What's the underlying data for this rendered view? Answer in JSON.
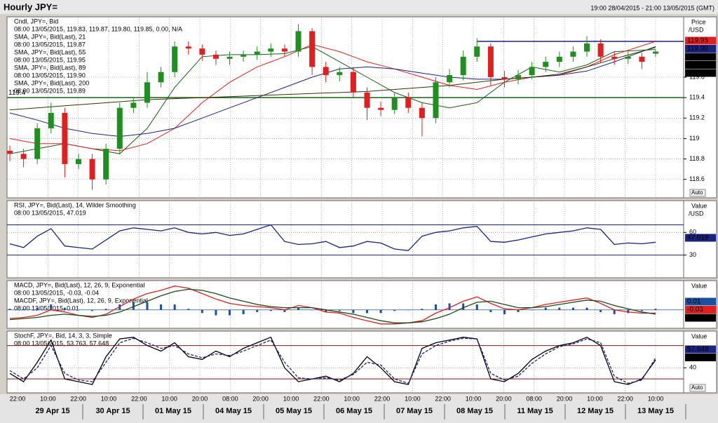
{
  "header": {
    "title": "Hourly JPY=",
    "range": "19:00 28/04/2015 - 21:00 13/05/2015 (GMT)"
  },
  "auto_label": "Auto",
  "time_axis": {
    "times": [
      "22:00",
      "10:00",
      "22:00",
      "10:00",
      "22:00",
      "10:00",
      "20:00",
      "08:00",
      "20:00",
      "10:00",
      "22:00",
      "10:00",
      "22:00",
      "10:00",
      "22:00",
      "10:00",
      "20:00",
      "08:00",
      "20:00",
      "10:00",
      "22:00",
      "10:00"
    ],
    "dates": [
      "29 Apr 15",
      "30 Apr 15",
      "01 May 15",
      "04 May 15",
      "05 May 15",
      "06 May 15",
      "07 May 15",
      "08 May 15",
      "11 May 15",
      "12 May 15",
      "13 May 15"
    ]
  },
  "chart_data": [
    {
      "type": "candlestick",
      "axis_title": "Price",
      "axis_unit": "/USD",
      "legend": [
        {
          "text": "Cndl, JPY=, Bid",
          "color": "#000000"
        },
        {
          "text": "08:00 13/05/2015, 119.83, 119.87, 119.80, 119.85, 0.00, N/A",
          "color": "#000000"
        },
        {
          "text": "SMA, JPY=, Bid(Last), 21",
          "color": "#1a5e1a"
        },
        {
          "text": "08:00 13/05/2015, 119.87",
          "color": "#1a5e1a"
        },
        {
          "text": "SMA, JPY=, Bid(Last), 55",
          "color": "#e02020"
        },
        {
          "text": "08:00 13/05/2015, 119.95",
          "color": "#e02020"
        },
        {
          "text": "SMA, JPY=, Bid(Last), 89",
          "color": "#1a237e"
        },
        {
          "text": "08:00 13/05/2015, 119.90",
          "color": "#1a237e"
        },
        {
          "text": "SMA, JPY=, Bid(Last), 200",
          "color": "#000000"
        },
        {
          "text": "08:00 13/05/2015, 119.89",
          "color": "#000000"
        }
      ],
      "ylim": [
        118.42,
        120.19
      ],
      "yticks": [
        119.6,
        119.4,
        119.2,
        119,
        118.8,
        118.6
      ],
      "up_color": "#1f8f1f",
      "down_color": "#e02020",
      "open": [
        118.88,
        118.85,
        118.8,
        119.1,
        119.25,
        118.75,
        118.8,
        118.6,
        118.9,
        119.3,
        119.35,
        119.55,
        119.65,
        119.9,
        119.88,
        119.82,
        119.78,
        119.8,
        119.82,
        119.85,
        119.88,
        119.85,
        120.05,
        119.7,
        119.62,
        119.65,
        119.45,
        119.3,
        119.28,
        119.4,
        119.3,
        119.2,
        119.55,
        119.62,
        119.8,
        119.9,
        119.6,
        119.58,
        119.62,
        119.7,
        119.75,
        119.8,
        119.85,
        119.93,
        119.8,
        119.78,
        119.8,
        119.83
      ],
      "high": [
        118.93,
        118.9,
        119.15,
        119.35,
        119.3,
        118.85,
        118.85,
        118.95,
        119.35,
        119.4,
        119.65,
        119.7,
        119.95,
        119.95,
        119.92,
        119.86,
        119.85,
        119.86,
        119.9,
        119.93,
        119.92,
        120.12,
        120.08,
        119.75,
        119.7,
        119.7,
        119.5,
        119.36,
        119.45,
        119.45,
        119.35,
        119.6,
        119.68,
        119.86,
        119.98,
        119.93,
        119.66,
        119.67,
        119.75,
        119.8,
        119.85,
        119.9,
        120.0,
        119.97,
        119.85,
        119.85,
        119.84,
        119.87
      ],
      "low": [
        118.78,
        118.72,
        118.75,
        119.05,
        118.62,
        118.7,
        118.5,
        118.55,
        118.85,
        119.25,
        119.3,
        119.5,
        119.6,
        119.82,
        119.76,
        119.72,
        119.72,
        119.75,
        119.77,
        119.8,
        119.8,
        119.8,
        119.62,
        119.55,
        119.56,
        119.4,
        119.18,
        119.22,
        119.24,
        119.25,
        119.02,
        119.15,
        119.5,
        119.57,
        119.75,
        119.52,
        119.5,
        119.53,
        119.58,
        119.65,
        119.7,
        119.75,
        119.8,
        119.74,
        119.72,
        119.73,
        119.68,
        119.8
      ],
      "close": [
        118.85,
        118.8,
        119.1,
        119.25,
        118.75,
        118.8,
        118.6,
        118.9,
        119.3,
        119.35,
        119.55,
        119.65,
        119.9,
        119.88,
        119.82,
        119.78,
        119.8,
        119.82,
        119.85,
        119.88,
        119.85,
        120.05,
        119.7,
        119.62,
        119.65,
        119.45,
        119.3,
        119.28,
        119.4,
        119.3,
        119.2,
        119.55,
        119.62,
        119.8,
        119.9,
        119.6,
        119.58,
        119.62,
        119.7,
        119.75,
        119.8,
        119.85,
        119.93,
        119.8,
        119.78,
        119.8,
        119.75,
        119.85
      ],
      "ma_x": [
        0,
        2,
        4,
        6,
        8,
        10,
        12,
        14,
        16,
        18,
        20,
        22,
        24,
        26,
        28,
        30,
        32,
        34,
        36,
        38,
        40,
        42,
        44,
        47
      ],
      "series": [
        {
          "color": "#1a5e1a",
          "values": [
            118.85,
            118.9,
            118.95,
            118.9,
            118.85,
            119.1,
            119.5,
            119.8,
            119.82,
            119.82,
            119.83,
            119.9,
            119.75,
            119.6,
            119.45,
            119.35,
            119.3,
            119.35,
            119.55,
            119.7,
            119.65,
            119.72,
            119.85,
            119.87
          ]
        },
        {
          "color": "#e02020",
          "values": [
            119.0,
            118.95,
            118.95,
            118.9,
            118.88,
            118.95,
            119.1,
            119.35,
            119.55,
            119.7,
            119.8,
            119.92,
            119.85,
            119.75,
            119.68,
            119.6,
            119.52,
            119.48,
            119.55,
            119.6,
            119.62,
            119.7,
            119.82,
            119.95
          ]
        },
        {
          "color": "#1a237e",
          "values": [
            119.25,
            119.18,
            119.1,
            119.05,
            119.02,
            119.05,
            119.1,
            119.2,
            119.3,
            119.4,
            119.5,
            119.6,
            119.68,
            119.7,
            119.68,
            119.64,
            119.6,
            119.58,
            119.58,
            119.6,
            119.62,
            119.66,
            119.75,
            119.9
          ]
        },
        {
          "color": "#333300",
          "values": [
            119.28,
            119.3,
            119.32,
            119.34,
            119.36,
            119.38,
            119.39,
            119.4,
            119.41,
            119.42,
            119.43,
            119.44,
            119.45,
            119.46,
            119.48,
            119.5,
            119.52,
            119.55,
            119.58,
            119.6,
            119.63,
            119.7,
            119.78,
            119.89
          ]
        }
      ],
      "hlines": [
        {
          "value": 119.4,
          "color": "#1a5e1a",
          "start_x": 0
        },
        {
          "value": 119.95,
          "color": "#1a237e",
          "start_x": 34
        }
      ],
      "tags": [
        {
          "value": 119.95,
          "color": "#e02020"
        },
        {
          "value": 119.9,
          "label": "119.90",
          "color": "#1a237e"
        },
        {
          "value": 119.89,
          "color": "#000000"
        },
        {
          "value": 119.87,
          "color": "#000000"
        },
        {
          "value": 119.85,
          "color": "#000000"
        }
      ]
    },
    {
      "type": "line",
      "axis_title": "Value",
      "axis_unit": "/USD",
      "legend": [
        {
          "text": "RSI, JPY=, Bid(Last), 14, Wilder Smoothing",
          "color": "#1a237e"
        },
        {
          "text": "08:00 13/05/2015, 47.019",
          "color": "#1a237e"
        }
      ],
      "ylim": [
        0,
        102
      ],
      "yticks": [
        60,
        30
      ],
      "levels": [
        70,
        30
      ],
      "level_color": "#1a237e",
      "series": [
        {
          "color": "#1a237e",
          "values": [
            45,
            40,
            55,
            65,
            42,
            40,
            38,
            50,
            62,
            66,
            64,
            62,
            66,
            60,
            58,
            60,
            56,
            58,
            64,
            70,
            48,
            44,
            45,
            48,
            40,
            42,
            48,
            46,
            38,
            36,
            55,
            60,
            62,
            66,
            68,
            48,
            47,
            50,
            54,
            58,
            60,
            62,
            66,
            64,
            44,
            46,
            45,
            47.019
          ]
        }
      ],
      "tags": [
        {
          "value": 47.019,
          "color": "#1a237e"
        }
      ]
    },
    {
      "type": "macd",
      "axis_title": "Value",
      "legend": [
        {
          "text": "MACD, JPY=, Bid(Last), 12, 26, 9, Exponential",
          "color": "#e02020"
        },
        {
          "text": "08:00 13/05/2015, -0.03, -0.04",
          "color": "#e02020"
        },
        {
          "text": "MACDF, JPY=, Bid(Last), 12, 26, 9, Exponential",
          "color": "#1c4f9c"
        },
        {
          "text": "08:00 13/05/2015, 0.01",
          "color": "#1c4f9c"
        }
      ],
      "ylim": [
        -0.17,
        0.27
      ],
      "yticks": [],
      "histogram": {
        "color": "#1c4f9c",
        "values": [
          0.01,
          0.01,
          0.02,
          0.05,
          0.02,
          0.0,
          -0.01,
          0.01,
          0.05,
          0.07,
          0.07,
          0.05,
          0.05,
          0.01,
          -0.03,
          -0.05,
          -0.05,
          -0.04,
          -0.02,
          -0.01,
          -0.02,
          0.02,
          0.0,
          -0.02,
          -0.01,
          -0.03,
          -0.03,
          -0.03,
          -0.01,
          0.0,
          0.01,
          0.05,
          0.06,
          0.06,
          0.05,
          -0.02,
          -0.04,
          -0.02,
          0.0,
          0.02,
          0.02,
          0.02,
          0.02,
          -0.02,
          -0.04,
          -0.03,
          -0.01,
          0.01
        ]
      },
      "series": [
        {
          "color": "#e02020",
          "values": [
            -0.08,
            -0.07,
            -0.05,
            0.0,
            -0.02,
            -0.05,
            -0.07,
            -0.04,
            0.03,
            0.1,
            0.15,
            0.18,
            0.22,
            0.2,
            0.15,
            0.1,
            0.06,
            0.04,
            0.03,
            0.02,
            0.0,
            0.04,
            0.02,
            -0.02,
            -0.03,
            -0.07,
            -0.1,
            -0.13,
            -0.13,
            -0.12,
            -0.1,
            -0.03,
            0.02,
            0.08,
            0.12,
            0.06,
            0.01,
            0.0,
            0.02,
            0.05,
            0.07,
            0.09,
            0.11,
            0.06,
            0.0,
            -0.02,
            -0.03,
            -0.03
          ]
        },
        {
          "color": "#1a4a1a",
          "values": [
            -0.09,
            -0.08,
            -0.07,
            -0.05,
            -0.04,
            -0.05,
            -0.06,
            -0.05,
            -0.02,
            0.03,
            0.08,
            0.13,
            0.17,
            0.19,
            0.18,
            0.15,
            0.11,
            0.08,
            0.05,
            0.03,
            0.02,
            0.02,
            0.02,
            0.0,
            -0.02,
            -0.04,
            -0.07,
            -0.1,
            -0.12,
            -0.12,
            -0.11,
            -0.08,
            -0.04,
            0.02,
            0.07,
            0.08,
            0.05,
            0.02,
            0.02,
            0.03,
            0.05,
            0.07,
            0.09,
            0.08,
            0.04,
            0.01,
            -0.02,
            -0.04
          ]
        }
      ],
      "tags": [
        {
          "value": 0.01,
          "color": "#1c4f9c"
        },
        {
          "value": -0.03,
          "color": "#e02020"
        },
        {
          "value": -0.04,
          "color": "#000000"
        }
      ]
    },
    {
      "type": "line",
      "axis_title": "Value",
      "legend": [
        {
          "text": "StochF, JPY=, Bid, 14, 3, 3, Simple",
          "color": "#000000"
        },
        {
          "text": "08:00 13/05/2015, 53.763, 57.648",
          "color": "#000000"
        }
      ],
      "ylim": [
        -5,
        106
      ],
      "yticks": [
        40
      ],
      "levels": [
        80,
        20
      ],
      "level_color": "#7a1a1a",
      "series": [
        {
          "color": "#000000",
          "values": [
            30,
            15,
            50,
            90,
            20,
            15,
            10,
            60,
            92,
            95,
            80,
            70,
            85,
            60,
            55,
            70,
            60,
            75,
            85,
            95,
            40,
            15,
            20,
            25,
            15,
            30,
            60,
            40,
            15,
            10,
            75,
            85,
            90,
            95,
            92,
            20,
            15,
            30,
            55,
            70,
            80,
            85,
            95,
            80,
            15,
            10,
            20,
            53.763
          ]
        },
        {
          "color": "#1a237e",
          "dashed": true,
          "values": [
            35,
            20,
            40,
            80,
            30,
            18,
            15,
            50,
            85,
            93,
            85,
            75,
            80,
            65,
            58,
            65,
            62,
            70,
            80,
            90,
            50,
            22,
            20,
            22,
            18,
            28,
            50,
            45,
            20,
            12,
            65,
            80,
            88,
            93,
            92,
            30,
            18,
            25,
            48,
            65,
            78,
            83,
            92,
            85,
            25,
            12,
            18,
            57.648
          ]
        }
      ],
      "tags": [
        {
          "value": 57.648,
          "color": "#1a237e"
        },
        {
          "value": 53.763,
          "color": "#000000"
        }
      ]
    }
  ]
}
